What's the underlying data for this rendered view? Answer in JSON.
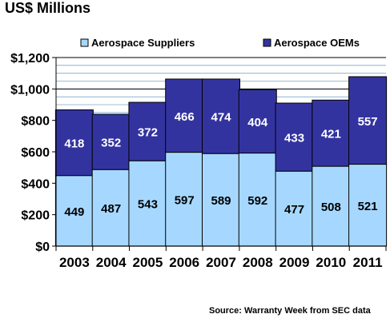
{
  "chart_data": {
    "type": "bar",
    "stacked": true,
    "title": "US$ Millions",
    "categories": [
      "2003",
      "2004",
      "2005",
      "2006",
      "2007",
      "2008",
      "2009",
      "2010",
      "2011"
    ],
    "series": [
      {
        "name": "Aerospace Suppliers",
        "values": [
          449,
          487,
          543,
          597,
          589,
          592,
          477,
          508,
          521
        ],
        "color": "#a6d8ff"
      },
      {
        "name": "Aerospace OEMs",
        "values": [
          418,
          352,
          372,
          466,
          474,
          404,
          433,
          421,
          557
        ],
        "color": "#3333a0"
      }
    ],
    "y_tick_labels": [
      "$0",
      "$200",
      "$400",
      "$600",
      "$800",
      "$1,000",
      "$1,200"
    ],
    "ylim": [
      0,
      1200
    ],
    "y_minor_step": 50,
    "grid": true,
    "legend_position": "top",
    "source": "Source: Warranty Week from SEC data"
  }
}
